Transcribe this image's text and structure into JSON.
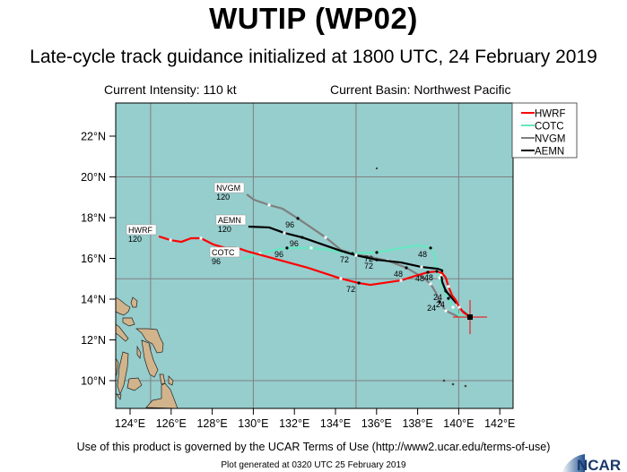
{
  "header": {
    "title": "WUTIP (WP02)",
    "subtitle": "Late-cycle track guidance initialized at 1800 UTC, 24 February 2019"
  },
  "info": {
    "intensity": "Current Intensity: 110 kt",
    "basin": "Current Basin: Northwest Pacific"
  },
  "footer": {
    "terms": "Use of this product is governed by the UCAR Terms of Use (http://www2.ucar.edu/terms-of-use)",
    "generated": "Plot generated at 0320 UTC   25 February 2019",
    "logo": "NCAR"
  },
  "colors": {
    "ocean": "#96cdcd",
    "land": "#d2b48c",
    "grid": "#808080"
  },
  "chart_data": {
    "type": "line",
    "xlim": [
      123.3,
      142.65
    ],
    "ylim": [
      8.64,
      23.63
    ],
    "x_ticks": [
      "124°E",
      "126°E",
      "128°E",
      "130°E",
      "132°E",
      "134°E",
      "136°E",
      "138°E",
      "140°E",
      "142°E"
    ],
    "y_ticks": [
      "10°N",
      "12°N",
      "14°N",
      "16°N",
      "18°N",
      "20°N",
      "22°N"
    ],
    "grid": "every 5 degrees",
    "legend_placement": "top-right",
    "current_position": {
      "lon": 140.55,
      "lat": 13.12
    },
    "series": [
      {
        "name": "HWRF",
        "color": "#ff0000",
        "points": [
          [
            140.55,
            13.12
          ],
          [
            140.24,
            13.34
          ],
          [
            140.03,
            13.6
          ],
          [
            139.85,
            13.96
          ],
          [
            139.68,
            14.18
          ],
          [
            139.5,
            14.62
          ],
          [
            139.37,
            15.05
          ],
          [
            139.2,
            15.27
          ],
          [
            138.93,
            15.36
          ],
          [
            138.5,
            15.32
          ],
          [
            137.76,
            15.1
          ],
          [
            137.19,
            14.92
          ],
          [
            135.7,
            14.7
          ],
          [
            135.14,
            14.79
          ],
          [
            134.26,
            15.01
          ],
          [
            132.65,
            15.54
          ],
          [
            129.76,
            16.33
          ],
          [
            129.24,
            16.51
          ],
          [
            128.67,
            16.51
          ],
          [
            128.06,
            16.68
          ],
          [
            127.45,
            16.99
          ],
          [
            126.97,
            16.99
          ],
          [
            126.49,
            16.81
          ],
          [
            125.97,
            16.9
          ],
          [
            125.4,
            17.08
          ]
        ]
      },
      {
        "name": "COTC",
        "color": "#66e8c0",
        "points": [
          [
            140.55,
            13.12
          ],
          [
            140.03,
            13.16
          ],
          [
            139.72,
            13.6
          ],
          [
            139.5,
            14.04
          ],
          [
            139.28,
            14.48
          ],
          [
            139.07,
            15.05
          ],
          [
            138.89,
            15.58
          ],
          [
            138.85,
            16.07
          ],
          [
            138.63,
            16.51
          ],
          [
            138.06,
            16.64
          ],
          [
            137.19,
            16.51
          ],
          [
            136.01,
            16.29
          ],
          [
            134.83,
            16.24
          ],
          [
            133.61,
            16.42
          ],
          [
            132.82,
            16.51
          ],
          [
            131.64,
            16.51
          ],
          [
            131.07,
            16.42
          ],
          [
            130.33,
            16.24
          ],
          [
            129.46,
            15.98
          ]
        ]
      },
      {
        "name": "NVGM",
        "color": "#7f7f7f",
        "points": [
          [
            140.55,
            13.12
          ],
          [
            139.94,
            13.16
          ],
          [
            139.37,
            13.43
          ],
          [
            139.07,
            13.87
          ],
          [
            138.89,
            14.31
          ],
          [
            138.63,
            14.75
          ],
          [
            138.28,
            15.05
          ],
          [
            137.45,
            15.54
          ],
          [
            136.53,
            15.89
          ],
          [
            134.83,
            16.24
          ],
          [
            134.26,
            16.42
          ],
          [
            133.52,
            17.03
          ],
          [
            132.17,
            17.96
          ],
          [
            131.42,
            18.44
          ],
          [
            130.77,
            18.62
          ],
          [
            130.03,
            18.88
          ],
          [
            129.68,
            19.14
          ]
        ]
      },
      {
        "name": "AEMN",
        "color": "#000000",
        "points": [
          [
            140.55,
            13.12
          ],
          [
            140.16,
            13.43
          ],
          [
            139.94,
            13.74
          ],
          [
            139.37,
            14.4
          ],
          [
            139.2,
            14.84
          ],
          [
            139.15,
            15.19
          ],
          [
            139.2,
            15.41
          ],
          [
            138.98,
            15.49
          ],
          [
            138.19,
            15.58
          ],
          [
            137.19,
            15.8
          ],
          [
            136.01,
            15.93
          ],
          [
            135.0,
            16.15
          ],
          [
            134.26,
            16.37
          ],
          [
            132.38,
            17.03
          ],
          [
            131.51,
            17.25
          ],
          [
            130.77,
            17.52
          ],
          [
            129.76,
            17.56
          ]
        ]
      }
    ],
    "model_labels": [
      {
        "name": "HWRF",
        "hour": "120",
        "lon": 125.4,
        "lat": 17.08
      },
      {
        "name": "COTC",
        "hour": "96",
        "lon": 129.46,
        "lat": 15.98
      },
      {
        "name": "NVGM",
        "hour": "120",
        "lon": 129.68,
        "lat": 19.14
      },
      {
        "name": "AEMN",
        "hour": "120",
        "lon": 129.76,
        "lat": 17.56
      }
    ],
    "annotations": [
      {
        "text": "96",
        "lon": 132.17,
        "lat": 17.96
      },
      {
        "text": "96",
        "lon": 132.38,
        "lat": 17.03
      },
      {
        "text": "96",
        "lon": 131.64,
        "lat": 16.51
      },
      {
        "text": "72",
        "lon": 136.01,
        "lat": 16.29
      },
      {
        "text": "72",
        "lon": 134.83,
        "lat": 16.24
      },
      {
        "text": "72",
        "lon": 136.01,
        "lat": 15.93
      },
      {
        "text": "72",
        "lon": 135.14,
        "lat": 14.79
      },
      {
        "text": "48",
        "lon": 138.63,
        "lat": 16.51
      },
      {
        "text": "48",
        "lon": 137.45,
        "lat": 15.54
      },
      {
        "text": "48",
        "lon": 138.5,
        "lat": 15.32
      },
      {
        "text": "48",
        "lon": 138.93,
        "lat": 15.36
      },
      {
        "text": "24",
        "lon": 139.37,
        "lat": 14.4
      },
      {
        "text": "24",
        "lon": 139.07,
        "lat": 13.87
      },
      {
        "text": "24",
        "lon": 139.5,
        "lat": 14.04
      }
    ]
  }
}
